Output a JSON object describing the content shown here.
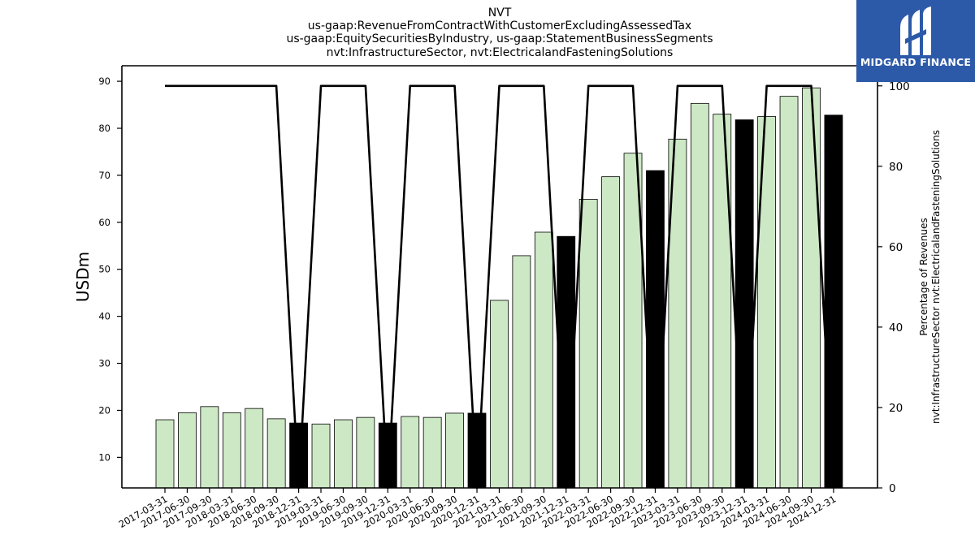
{
  "title_lines": [
    "NVT",
    "us-gaap:RevenueFromContractWithCustomerExcludingAssessedTax",
    "us-gaap:EquitySecuritiesByIndustry, us-gaap:StatementBusinessSegments",
    "nvt:InfrastructureSector, nvt:ElectricalandFasteningSolutions"
  ],
  "logo": {
    "text": "MIDGARD FINANCE"
  },
  "chart_data": {
    "type": "bar",
    "categories": [
      "2017-03-31",
      "2017-06-30",
      "2017-09-30",
      "2018-03-31",
      "2018-06-30",
      "2018-09-30",
      "2018-12-31",
      "2019-03-31",
      "2019-06-30",
      "2019-09-30",
      "2019-12-31",
      "2020-03-31",
      "2020-06-30",
      "2020-09-30",
      "2020-12-31",
      "2021-03-31",
      "2021-06-30",
      "2021-09-30",
      "2021-12-31",
      "2022-03-31",
      "2022-06-30",
      "2022-09-30",
      "2022-12-31",
      "2023-03-31",
      "2023-06-30",
      "2023-09-30",
      "2023-12-31",
      "2024-03-31",
      "2024-06-30",
      "2024-09-30",
      "2024-12-31"
    ],
    "values": [
      18.0,
      19.5,
      20.8,
      19.5,
      20.4,
      18.2,
      17.3,
      17.1,
      18.0,
      18.5,
      17.3,
      18.7,
      18.5,
      19.4,
      19.4,
      43.4,
      52.9,
      57.9,
      57.0,
      64.9,
      69.7,
      74.7,
      71.0,
      77.7,
      85.3,
      83.0,
      81.8,
      82.5,
      86.8,
      88.6,
      82.8
    ],
    "highlight": [
      false,
      false,
      false,
      false,
      false,
      false,
      true,
      false,
      false,
      false,
      true,
      false,
      false,
      false,
      true,
      false,
      false,
      false,
      true,
      false,
      false,
      false,
      true,
      false,
      false,
      false,
      true,
      false,
      false,
      false,
      true
    ],
    "colors": {
      "bar": "#cde8c5",
      "highlight": "#000000",
      "edge": "#000000",
      "line": "#000000",
      "logo_bg": "#2d5aa8"
    },
    "ylabel": "USDm",
    "ylim": [
      3.5,
      93.3
    ],
    "yticks": [
      10,
      20,
      30,
      40,
      50,
      60,
      70,
      80,
      90
    ],
    "secondary": {
      "ylabel_lines": [
        "Percentage of Revenues",
        "nvt:InfrastructureSector nvt:ElectricalandFasteningSolutions"
      ],
      "ylim": [
        0,
        105.0
      ],
      "yticks": [
        0,
        20,
        40,
        60,
        80,
        100
      ],
      "values": [
        100,
        100,
        100,
        100,
        100,
        100,
        0,
        100,
        100,
        100,
        0,
        100,
        100,
        100,
        0,
        100,
        100,
        100,
        0,
        100,
        100,
        100,
        0,
        100,
        100,
        100,
        0,
        100,
        100,
        100,
        0
      ]
    },
    "grid": false
  }
}
